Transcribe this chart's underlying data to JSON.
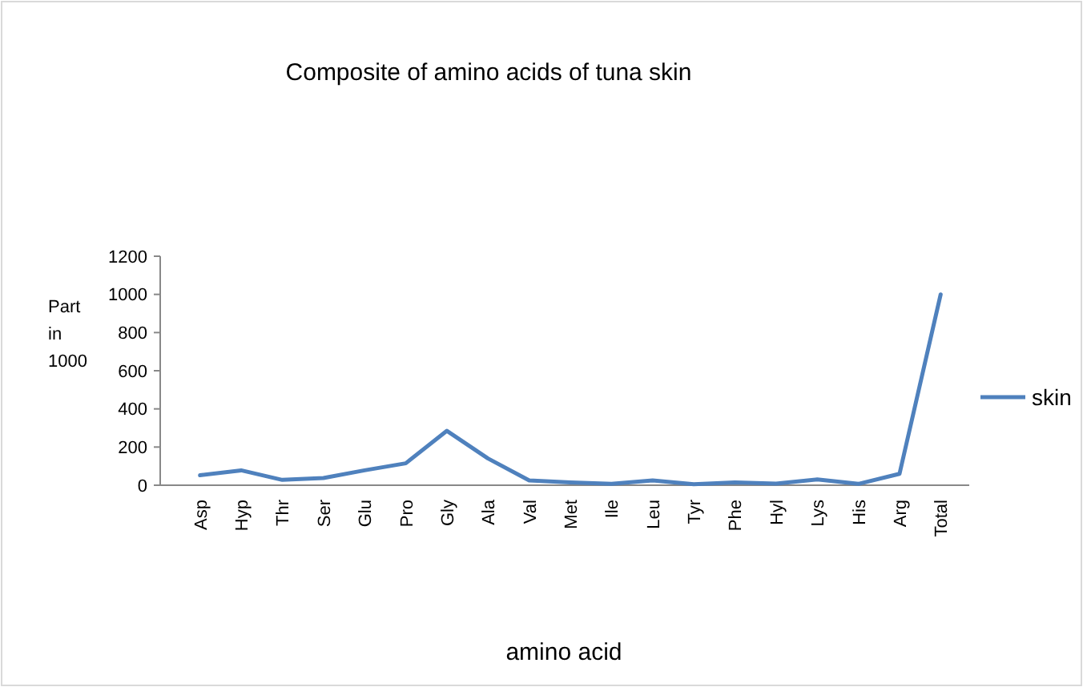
{
  "chart_data": {
    "type": "line",
    "title": "Composite of amino acids of tuna skin",
    "xlabel": "amino acid",
    "ylabel": "Part in 1000",
    "categories": [
      "Asp",
      "Hyp",
      "Thr",
      "Ser",
      "Glu",
      "Pro",
      "Gly",
      "Ala",
      "Val",
      "Met",
      "Ile",
      "Leu",
      "Tyr",
      "Phe",
      "Hyl",
      "Lys",
      "His",
      "Arg",
      "Total"
    ],
    "series": [
      {
        "name": "skin",
        "color": "#4f81bd",
        "values": [
          52,
          78,
          28,
          38,
          78,
          115,
          285,
          140,
          25,
          15,
          7,
          25,
          5,
          15,
          8,
          30,
          7,
          60,
          1000
        ]
      }
    ],
    "ylim": [
      0,
      1200
    ],
    "yticks": [
      0,
      200,
      400,
      600,
      800,
      1000,
      1200
    ],
    "grid": false,
    "legend": "right",
    "marker": "none",
    "line_style": "solid"
  }
}
